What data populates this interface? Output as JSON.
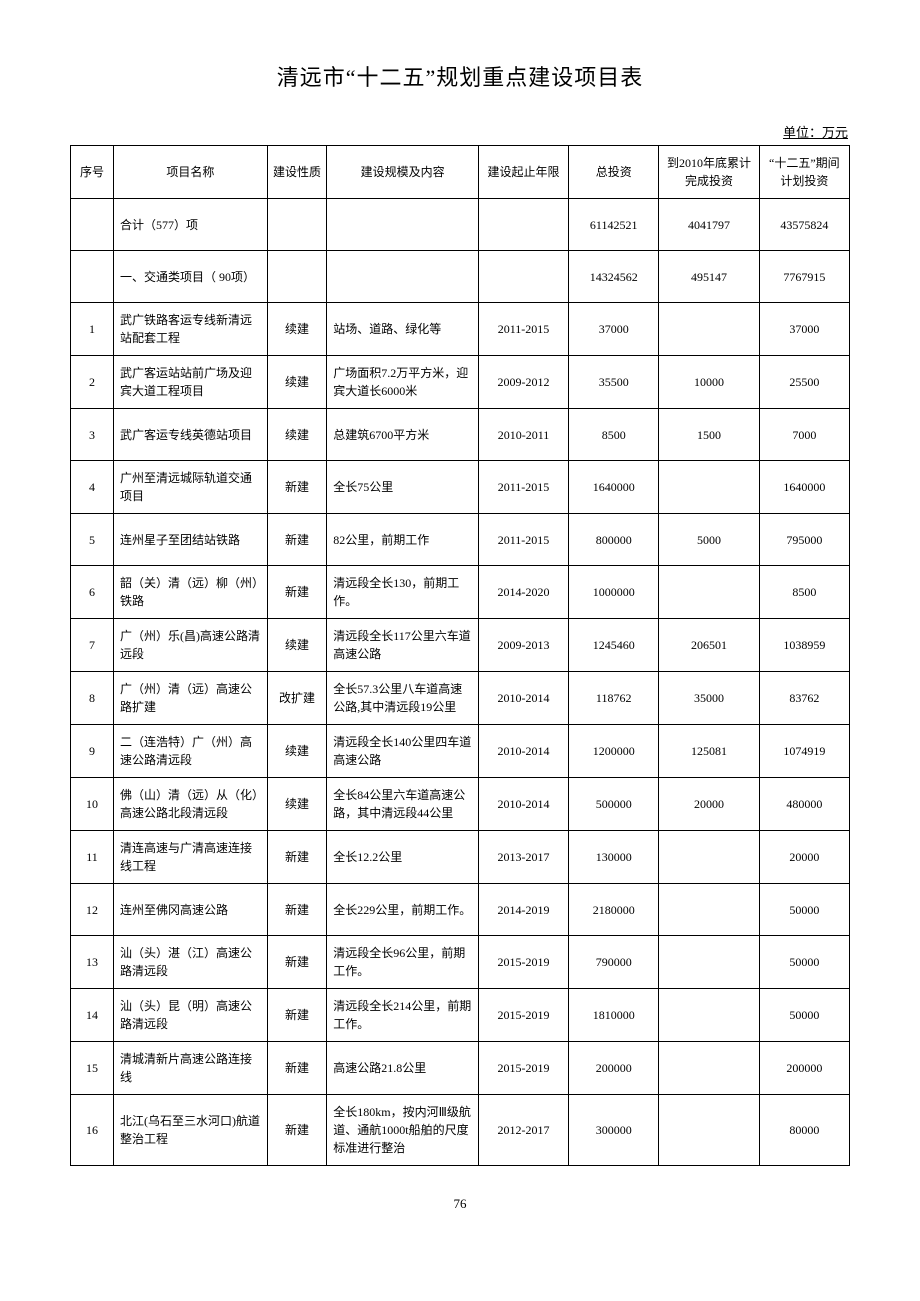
{
  "title": "清远市“十二五”规划重点建设项目表",
  "unit_label": "单位：万元",
  "page_number": "76",
  "columns": {
    "seq": "序号",
    "name": "项目名称",
    "nature": "建设性质",
    "scale": "建设规模及内容",
    "period": "建设起止年限",
    "total": "总投资",
    "completed": "到2010年底累计完成投资",
    "plan": "“十二五”期间计划投资"
  },
  "rows": [
    {
      "seq": "",
      "name": "合计（577）项",
      "nature": "",
      "scale": "",
      "period": "",
      "total": "61142521",
      "completed": "4041797",
      "plan": "43575824"
    },
    {
      "seq": "",
      "name": "一、交通类项目（ 90项）",
      "nature": "",
      "scale": "",
      "period": "",
      "total": "14324562",
      "completed": "495147",
      "plan": "7767915"
    },
    {
      "seq": "1",
      "name": "武广铁路客运专线新清远站配套工程",
      "nature": "续建",
      "scale": "站场、道路、绿化等",
      "period": "2011-2015",
      "total": "37000",
      "completed": "",
      "plan": "37000"
    },
    {
      "seq": "2",
      "name": "武广客运站站前广场及迎宾大道工程项目",
      "nature": "续建",
      "scale": "广场面积7.2万平方米，迎宾大道长6000米",
      "period": "2009-2012",
      "total": "35500",
      "completed": "10000",
      "plan": "25500"
    },
    {
      "seq": "3",
      "name": "武广客运专线英德站项目",
      "nature": "续建",
      "scale": "总建筑6700平方米",
      "period": "2010-2011",
      "total": "8500",
      "completed": "1500",
      "plan": "7000"
    },
    {
      "seq": "4",
      "name": "广州至清远城际轨道交通项目",
      "nature": "新建",
      "scale": "全长75公里",
      "period": "2011-2015",
      "total": "1640000",
      "completed": "",
      "plan": "1640000"
    },
    {
      "seq": "5",
      "name": "连州星子至团结站铁路",
      "nature": "新建",
      "scale": "82公里，前期工作",
      "period": "2011-2015",
      "total": "800000",
      "completed": "5000",
      "plan": "795000"
    },
    {
      "seq": "6",
      "name": "韶（关）清（远）柳（州）铁路",
      "nature": "新建",
      "scale": "清远段全长130，前期工作。",
      "period": "2014-2020",
      "total": "1000000",
      "completed": "",
      "plan": "8500"
    },
    {
      "seq": "7",
      "name": "广（州）乐(昌)高速公路清远段",
      "nature": "续建",
      "scale": "清远段全长117公里六车道高速公路",
      "period": "2009-2013",
      "total": "1245460",
      "completed": "206501",
      "plan": "1038959"
    },
    {
      "seq": "8",
      "name": "广（州）清（远）高速公路扩建",
      "nature": "改扩建",
      "scale": "全长57.3公里八车道高速公路,其中清远段19公里",
      "period": "2010-2014",
      "total": "118762",
      "completed": "35000",
      "plan": "83762"
    },
    {
      "seq": "9",
      "name": "二（连浩特）广（州）高速公路清远段",
      "nature": "续建",
      "scale": "清远段全长140公里四车道高速公路",
      "period": "2010-2014",
      "total": "1200000",
      "completed": "125081",
      "plan": "1074919"
    },
    {
      "seq": "10",
      "name": "佛（山）清（远）从（化）高速公路北段清远段",
      "nature": "续建",
      "scale": "全长84公里六车道高速公路，其中清远段44公里",
      "period": "2010-2014",
      "total": "500000",
      "completed": "20000",
      "plan": "480000"
    },
    {
      "seq": "11",
      "name": "清连高速与广清高速连接线工程",
      "nature": "新建",
      "scale": "全长12.2公里",
      "period": "2013-2017",
      "total": "130000",
      "completed": "",
      "plan": "20000"
    },
    {
      "seq": "12",
      "name": "连州至佛冈高速公路",
      "nature": "新建",
      "scale": "全长229公里，前期工作。",
      "period": "2014-2019",
      "total": "2180000",
      "completed": "",
      "plan": "50000"
    },
    {
      "seq": "13",
      "name": "汕（头）湛（江）高速公路清远段",
      "nature": "新建",
      "scale": "清远段全长96公里，前期工作。",
      "period": "2015-2019",
      "total": "790000",
      "completed": "",
      "plan": "50000"
    },
    {
      "seq": "14",
      "name": "汕（头）昆（明）高速公路清远段",
      "nature": "新建",
      "scale": "清远段全长214公里，前期工作。",
      "period": "2015-2019",
      "total": "1810000",
      "completed": "",
      "plan": "50000"
    },
    {
      "seq": "15",
      "name": "清城清新片高速公路连接线",
      "nature": "新建",
      "scale": "高速公路21.8公里",
      "period": "2015-2019",
      "total": "200000",
      "completed": "",
      "plan": "200000"
    },
    {
      "seq": "16",
      "name": "北江(乌石至三水河口)航道整治工程",
      "nature": "新建",
      "scale": "全长180km，按内河Ⅲ级航道、通航1000t船舶的尺度标准进行整治",
      "period": "2012-2017",
      "total": "300000",
      "completed": "",
      "plan": "80000"
    }
  ]
}
